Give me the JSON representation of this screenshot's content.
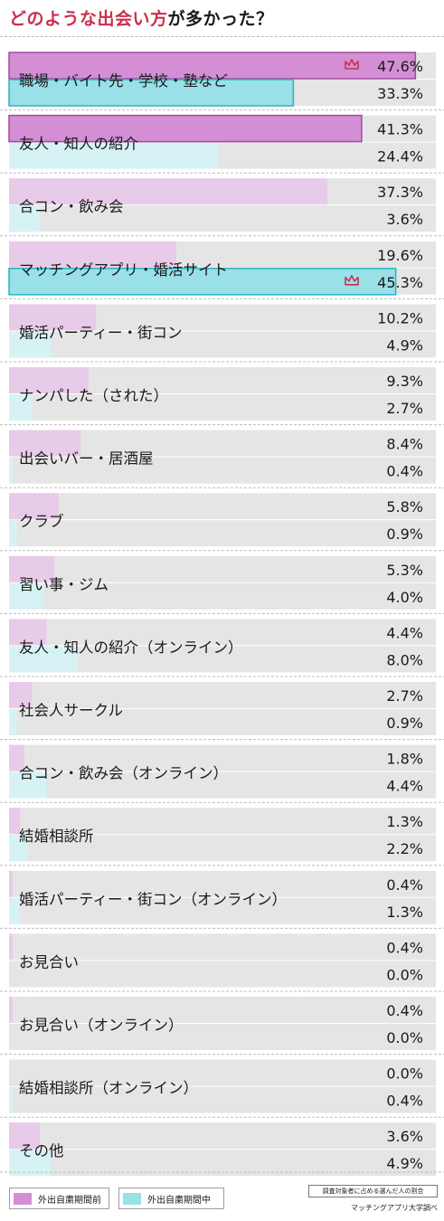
{
  "title_part1": "どのような出会い方",
  "title_part2": "が多かった？",
  "legend": {
    "before": "外出自粛期間前",
    "during": "外出自粛期間中"
  },
  "note": "調査対象者に占める選んだ人の割合",
  "source": "マッチングアプリ大学調べ",
  "colors": {
    "before": "#d48fd4",
    "before_light": "#e8cbe8",
    "during": "#99e0e8",
    "during_light": "#d6f2f4",
    "track": "#e5e5e5",
    "highlight_border_before": "#a04aa0",
    "highlight_border_during": "#2ab3c4",
    "crown": "#c8314f"
  },
  "chart_data": {
    "type": "bar",
    "orientation": "horizontal",
    "unit": "%",
    "xlim": [
      0,
      50
    ],
    "categories": [
      "職場・バイト先・学校・塾など",
      "友人・知人の紹介",
      "合コン・飲み会",
      "マッチングアプリ・婚活サイト",
      "婚活パーティー・街コン",
      "ナンパした（された）",
      "出会いバー・居酒屋",
      "クラブ",
      "習い事・ジム",
      "友人・知人の紹介（オンライン）",
      "社会人サークル",
      "合コン・飲み会（オンライン）",
      "結婚相談所",
      "婚活パーティー・街コン（オンライン）",
      "お見合い",
      "お見合い（オンライン）",
      "結婚相談所（オンライン）",
      "その他"
    ],
    "series": [
      {
        "name": "外出自粛期間前",
        "values": [
          47.6,
          41.3,
          37.3,
          19.6,
          10.2,
          9.3,
          8.4,
          5.8,
          5.3,
          4.4,
          2.7,
          1.8,
          1.3,
          0.4,
          0.4,
          0.4,
          0.0,
          3.6
        ],
        "labels": [
          "47.6%",
          "41.3%",
          "37.3%",
          "19.6%",
          "10.2%",
          "9.3%",
          "8.4%",
          "5.8%",
          "5.3%",
          "4.4%",
          "2.7%",
          "1.8%",
          "1.3%",
          "0.4%",
          "0.4%",
          "0.4%",
          "0.0%",
          "3.6%"
        ]
      },
      {
        "name": "外出自粛期間中",
        "values": [
          33.3,
          24.4,
          3.6,
          45.3,
          4.9,
          2.7,
          0.4,
          0.9,
          4.0,
          8.0,
          0.9,
          4.4,
          2.2,
          1.3,
          0.0,
          0.0,
          0.4,
          4.9
        ],
        "labels": [
          "33.3%",
          "24.4%",
          "3.6%",
          "45.3%",
          "4.9%",
          "2.7%",
          "0.4%",
          "0.9%",
          "4.0%",
          "8.0%",
          "0.9%",
          "4.4%",
          "2.2%",
          "1.3%",
          "0.0%",
          "0.0%",
          "0.4%",
          "4.9%"
        ]
      }
    ],
    "highlights": {
      "before": [
        0,
        1
      ],
      "during": [
        0,
        3
      ]
    },
    "top_rank_marks": {
      "before": 0,
      "during": 3
    }
  }
}
